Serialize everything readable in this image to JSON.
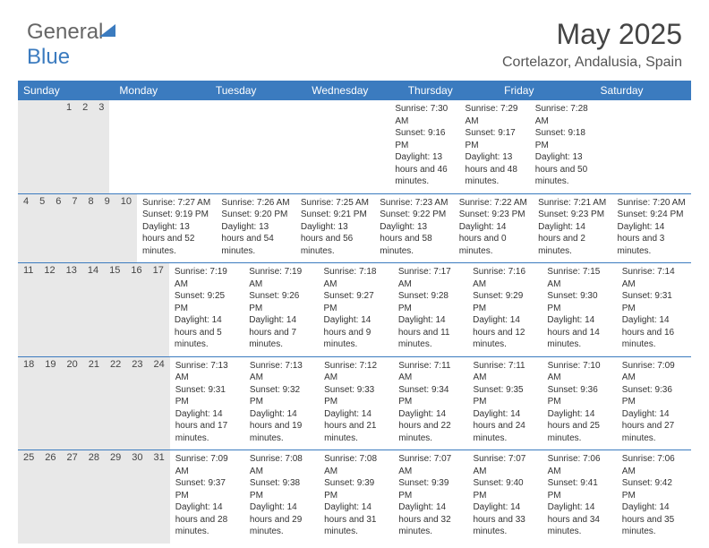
{
  "logo": {
    "part1": "General",
    "part2": "Blue"
  },
  "title": "May 2025",
  "location": "Cortelazor, Andalusia, Spain",
  "dayNames": [
    "Sunday",
    "Monday",
    "Tuesday",
    "Wednesday",
    "Thursday",
    "Friday",
    "Saturday"
  ],
  "colors": {
    "headerBlue": "#3b7bbf",
    "grayBand": "#e8e8e8",
    "text": "#333333"
  },
  "weeks": [
    [
      {
        "n": "",
        "sunrise": "",
        "sunset": "",
        "daylight": ""
      },
      {
        "n": "",
        "sunrise": "",
        "sunset": "",
        "daylight": ""
      },
      {
        "n": "",
        "sunrise": "",
        "sunset": "",
        "daylight": ""
      },
      {
        "n": "",
        "sunrise": "",
        "sunset": "",
        "daylight": ""
      },
      {
        "n": "1",
        "sunrise": "Sunrise: 7:30 AM",
        "sunset": "Sunset: 9:16 PM",
        "daylight": "Daylight: 13 hours and 46 minutes."
      },
      {
        "n": "2",
        "sunrise": "Sunrise: 7:29 AM",
        "sunset": "Sunset: 9:17 PM",
        "daylight": "Daylight: 13 hours and 48 minutes."
      },
      {
        "n": "3",
        "sunrise": "Sunrise: 7:28 AM",
        "sunset": "Sunset: 9:18 PM",
        "daylight": "Daylight: 13 hours and 50 minutes."
      }
    ],
    [
      {
        "n": "4",
        "sunrise": "Sunrise: 7:27 AM",
        "sunset": "Sunset: 9:19 PM",
        "daylight": "Daylight: 13 hours and 52 minutes."
      },
      {
        "n": "5",
        "sunrise": "Sunrise: 7:26 AM",
        "sunset": "Sunset: 9:20 PM",
        "daylight": "Daylight: 13 hours and 54 minutes."
      },
      {
        "n": "6",
        "sunrise": "Sunrise: 7:25 AM",
        "sunset": "Sunset: 9:21 PM",
        "daylight": "Daylight: 13 hours and 56 minutes."
      },
      {
        "n": "7",
        "sunrise": "Sunrise: 7:23 AM",
        "sunset": "Sunset: 9:22 PM",
        "daylight": "Daylight: 13 hours and 58 minutes."
      },
      {
        "n": "8",
        "sunrise": "Sunrise: 7:22 AM",
        "sunset": "Sunset: 9:23 PM",
        "daylight": "Daylight: 14 hours and 0 minutes."
      },
      {
        "n": "9",
        "sunrise": "Sunrise: 7:21 AM",
        "sunset": "Sunset: 9:23 PM",
        "daylight": "Daylight: 14 hours and 2 minutes."
      },
      {
        "n": "10",
        "sunrise": "Sunrise: 7:20 AM",
        "sunset": "Sunset: 9:24 PM",
        "daylight": "Daylight: 14 hours and 3 minutes."
      }
    ],
    [
      {
        "n": "11",
        "sunrise": "Sunrise: 7:19 AM",
        "sunset": "Sunset: 9:25 PM",
        "daylight": "Daylight: 14 hours and 5 minutes."
      },
      {
        "n": "12",
        "sunrise": "Sunrise: 7:19 AM",
        "sunset": "Sunset: 9:26 PM",
        "daylight": "Daylight: 14 hours and 7 minutes."
      },
      {
        "n": "13",
        "sunrise": "Sunrise: 7:18 AM",
        "sunset": "Sunset: 9:27 PM",
        "daylight": "Daylight: 14 hours and 9 minutes."
      },
      {
        "n": "14",
        "sunrise": "Sunrise: 7:17 AM",
        "sunset": "Sunset: 9:28 PM",
        "daylight": "Daylight: 14 hours and 11 minutes."
      },
      {
        "n": "15",
        "sunrise": "Sunrise: 7:16 AM",
        "sunset": "Sunset: 9:29 PM",
        "daylight": "Daylight: 14 hours and 12 minutes."
      },
      {
        "n": "16",
        "sunrise": "Sunrise: 7:15 AM",
        "sunset": "Sunset: 9:30 PM",
        "daylight": "Daylight: 14 hours and 14 minutes."
      },
      {
        "n": "17",
        "sunrise": "Sunrise: 7:14 AM",
        "sunset": "Sunset: 9:31 PM",
        "daylight": "Daylight: 14 hours and 16 minutes."
      }
    ],
    [
      {
        "n": "18",
        "sunrise": "Sunrise: 7:13 AM",
        "sunset": "Sunset: 9:31 PM",
        "daylight": "Daylight: 14 hours and 17 minutes."
      },
      {
        "n": "19",
        "sunrise": "Sunrise: 7:13 AM",
        "sunset": "Sunset: 9:32 PM",
        "daylight": "Daylight: 14 hours and 19 minutes."
      },
      {
        "n": "20",
        "sunrise": "Sunrise: 7:12 AM",
        "sunset": "Sunset: 9:33 PM",
        "daylight": "Daylight: 14 hours and 21 minutes."
      },
      {
        "n": "21",
        "sunrise": "Sunrise: 7:11 AM",
        "sunset": "Sunset: 9:34 PM",
        "daylight": "Daylight: 14 hours and 22 minutes."
      },
      {
        "n": "22",
        "sunrise": "Sunrise: 7:11 AM",
        "sunset": "Sunset: 9:35 PM",
        "daylight": "Daylight: 14 hours and 24 minutes."
      },
      {
        "n": "23",
        "sunrise": "Sunrise: 7:10 AM",
        "sunset": "Sunset: 9:36 PM",
        "daylight": "Daylight: 14 hours and 25 minutes."
      },
      {
        "n": "24",
        "sunrise": "Sunrise: 7:09 AM",
        "sunset": "Sunset: 9:36 PM",
        "daylight": "Daylight: 14 hours and 27 minutes."
      }
    ],
    [
      {
        "n": "25",
        "sunrise": "Sunrise: 7:09 AM",
        "sunset": "Sunset: 9:37 PM",
        "daylight": "Daylight: 14 hours and 28 minutes."
      },
      {
        "n": "26",
        "sunrise": "Sunrise: 7:08 AM",
        "sunset": "Sunset: 9:38 PM",
        "daylight": "Daylight: 14 hours and 29 minutes."
      },
      {
        "n": "27",
        "sunrise": "Sunrise: 7:08 AM",
        "sunset": "Sunset: 9:39 PM",
        "daylight": "Daylight: 14 hours and 31 minutes."
      },
      {
        "n": "28",
        "sunrise": "Sunrise: 7:07 AM",
        "sunset": "Sunset: 9:39 PM",
        "daylight": "Daylight: 14 hours and 32 minutes."
      },
      {
        "n": "29",
        "sunrise": "Sunrise: 7:07 AM",
        "sunset": "Sunset: 9:40 PM",
        "daylight": "Daylight: 14 hours and 33 minutes."
      },
      {
        "n": "30",
        "sunrise": "Sunrise: 7:06 AM",
        "sunset": "Sunset: 9:41 PM",
        "daylight": "Daylight: 14 hours and 34 minutes."
      },
      {
        "n": "31",
        "sunrise": "Sunrise: 7:06 AM",
        "sunset": "Sunset: 9:42 PM",
        "daylight": "Daylight: 14 hours and 35 minutes."
      }
    ]
  ]
}
